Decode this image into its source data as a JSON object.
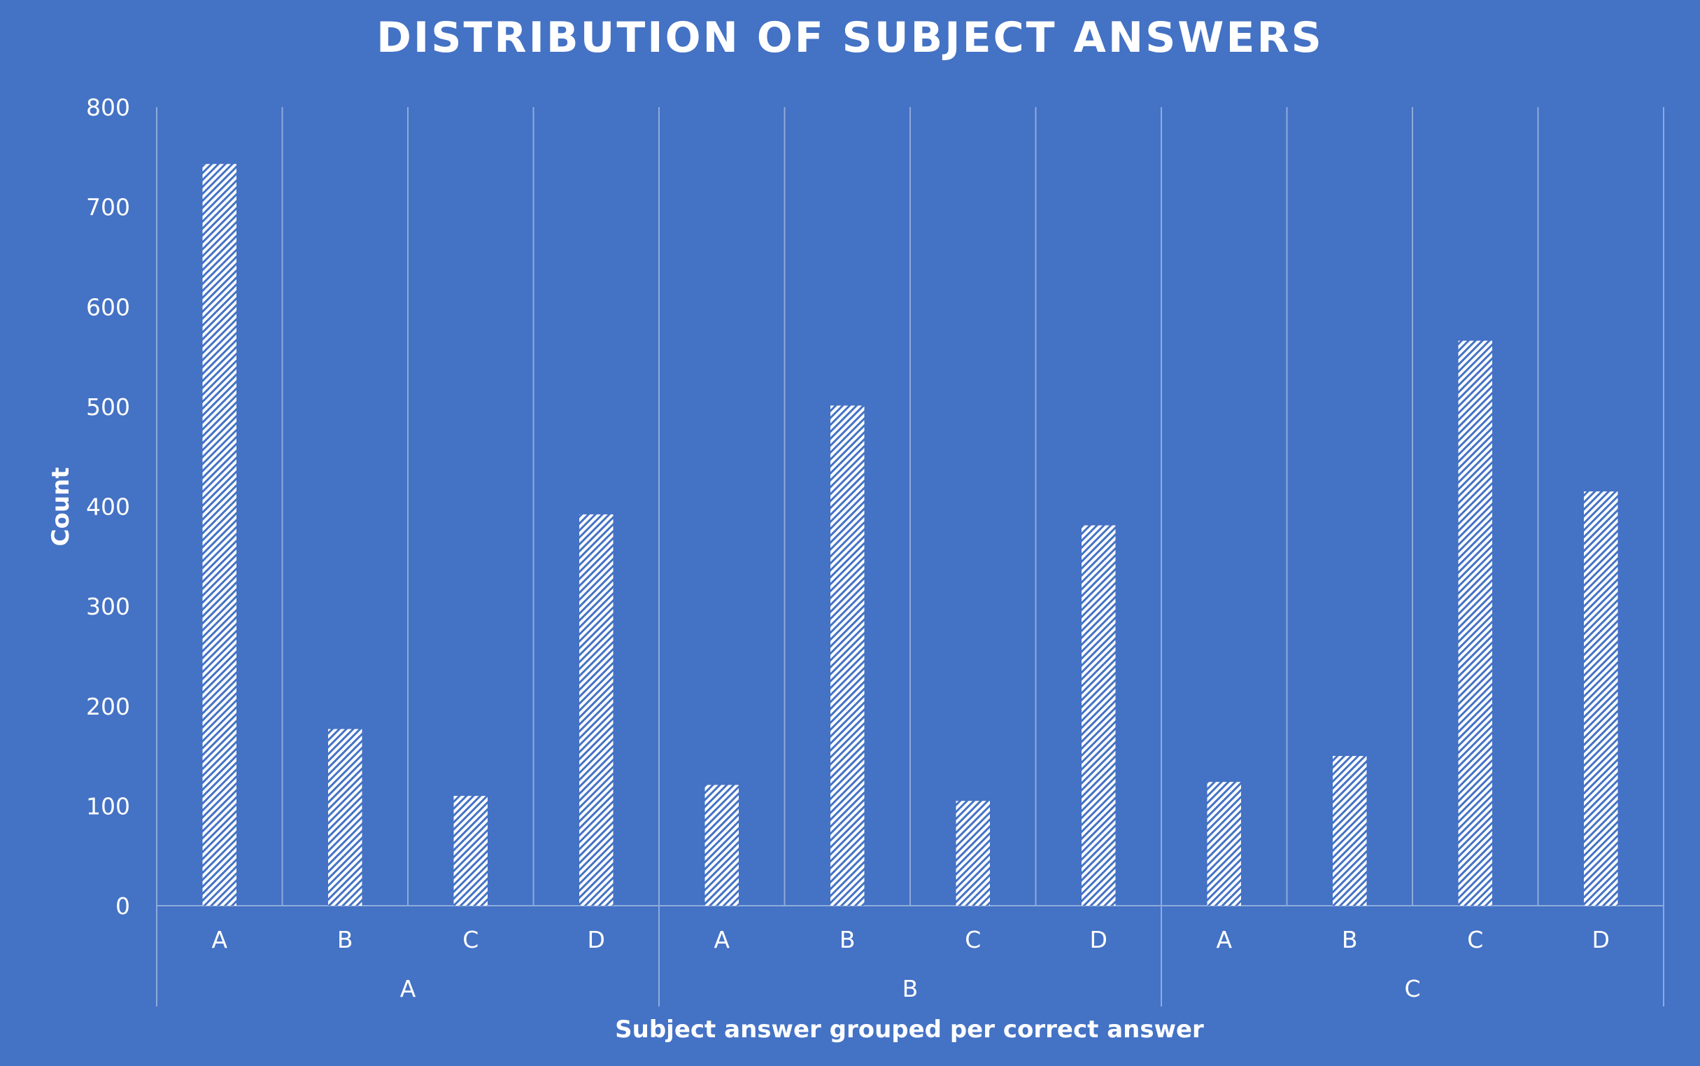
{
  "chart_data": {
    "type": "bar",
    "title": "DISTRIBUTION OF SUBJECT ANSWERS",
    "xlabel": "Subject answer grouped per correct answer",
    "ylabel": "Count",
    "ylim": [
      0,
      800
    ],
    "yticks": [
      0,
      100,
      200,
      300,
      400,
      500,
      600,
      700,
      800
    ],
    "grid": "vertical category separators",
    "legend": "none",
    "groups": [
      {
        "label": "A",
        "categories": [
          "A",
          "B",
          "C",
          "D"
        ],
        "values": [
          743,
          177,
          110,
          392
        ]
      },
      {
        "label": "B",
        "categories": [
          "A",
          "B",
          "C",
          "D"
        ],
        "values": [
          121,
          501,
          105,
          381
        ]
      },
      {
        "label": "C",
        "categories": [
          "A",
          "B",
          "C",
          "D"
        ],
        "values": [
          124,
          150,
          566,
          415
        ]
      }
    ]
  },
  "colors": {
    "background": "#4472c4",
    "bar_fill": "#ffffff",
    "bar_hatch": "#4472c4",
    "gridline": "#8faadc",
    "text": "#ffffff"
  }
}
